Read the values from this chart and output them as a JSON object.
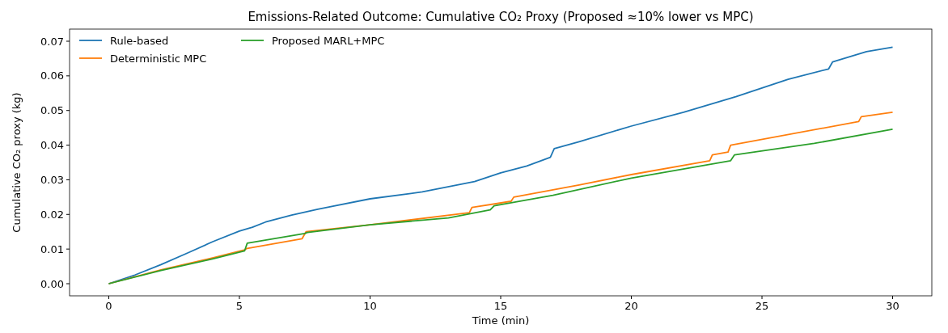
{
  "chart_data": {
    "type": "line",
    "title": "Emissions-Related Outcome: Cumulative CO₂ Proxy (Proposed ≈10% lower vs MPC)",
    "xlabel": "Time (min)",
    "ylabel": "Cumulative CO₂ proxy (kg)",
    "xlim": [
      -1.5,
      31.5
    ],
    "xticks": [
      0,
      5,
      10,
      15,
      20,
      25,
      30
    ],
    "ylim": [
      -0.0035,
      0.0735
    ],
    "yticks": [
      {
        "value": 0,
        "label": "0.00"
      },
      {
        "value": 0.01,
        "label": "0.01"
      },
      {
        "value": 0.02,
        "label": "0.02"
      },
      {
        "value": 0.03,
        "label": "0.03"
      },
      {
        "value": 0.04,
        "label": "0.04"
      },
      {
        "value": 0.05,
        "label": "0.05"
      },
      {
        "value": 0.06,
        "label": "0.06"
      },
      {
        "value": 0.07,
        "label": "0.07"
      }
    ],
    "legend": "top left",
    "grid": false,
    "line_style": "solid",
    "marker": "none",
    "series": [
      {
        "name": "Rule-based",
        "color": "#1f77b4",
        "x": [
          0,
          1,
          2,
          3,
          4,
          5,
          5.5,
          6,
          7,
          8,
          10,
          12,
          14,
          15,
          16,
          16.9,
          17.05,
          18,
          20,
          22,
          24,
          26,
          27.55,
          27.7,
          29,
          30
        ],
        "values": [
          0,
          0.0025,
          0.0055,
          0.0088,
          0.0122,
          0.0152,
          0.0163,
          0.0178,
          0.0198,
          0.0215,
          0.0245,
          0.0265,
          0.0295,
          0.032,
          0.034,
          0.0365,
          0.039,
          0.041,
          0.0455,
          0.0495,
          0.054,
          0.059,
          0.062,
          0.064,
          0.067,
          0.0683
        ]
      },
      {
        "name": "Deterministic MPC",
        "color": "#ff7f0e",
        "x": [
          0,
          2,
          4,
          5.2,
          5.3,
          7.4,
          7.55,
          10,
          13.8,
          13.9,
          15.4,
          15.5,
          18,
          20,
          23,
          23.1,
          23.7,
          23.8,
          28.7,
          28.8,
          30
        ],
        "values": [
          0,
          0.004,
          0.0075,
          0.0098,
          0.0102,
          0.013,
          0.015,
          0.017,
          0.0205,
          0.022,
          0.0238,
          0.025,
          0.0285,
          0.0315,
          0.0355,
          0.0372,
          0.038,
          0.04,
          0.0468,
          0.0482,
          0.0495
        ]
      },
      {
        "name": "Proposed MARL+MPC",
        "color": "#2ca02c",
        "x": [
          0,
          2,
          4,
          5.2,
          5.3,
          7.5,
          7.6,
          10,
          13,
          14.6,
          14.75,
          17,
          20,
          23.8,
          23.95,
          27,
          30
        ],
        "values": [
          0,
          0.0038,
          0.0072,
          0.0095,
          0.0117,
          0.0145,
          0.0148,
          0.017,
          0.019,
          0.0213,
          0.0225,
          0.0255,
          0.0305,
          0.0355,
          0.0372,
          0.0405,
          0.0446
        ]
      }
    ]
  }
}
